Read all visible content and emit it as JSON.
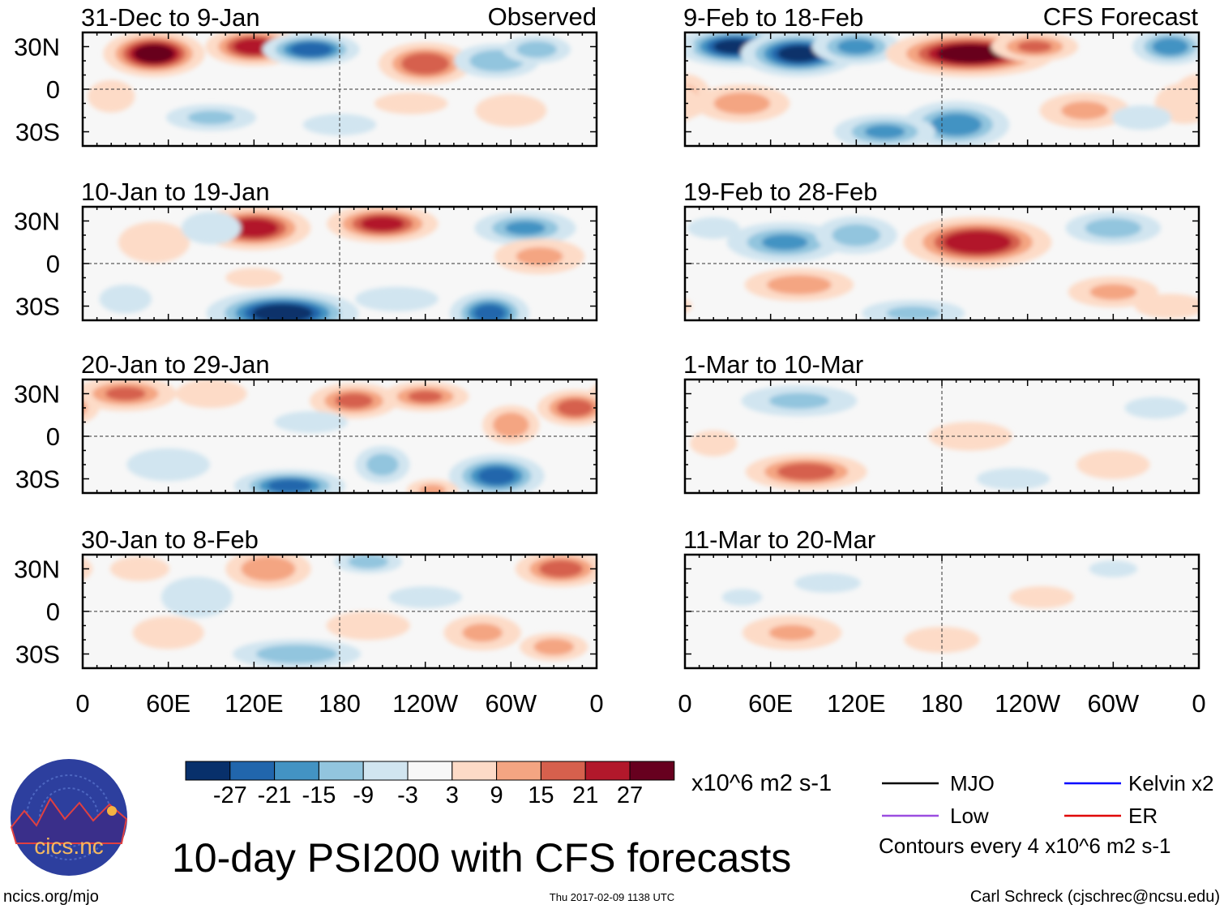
{
  "title": "10-day PSI200 with CFS forecasts",
  "footer": {
    "left": "ncics.org/mjo",
    "center": "Thu 2017-02-09 1138 UTC",
    "right": "Carl Schreck (cjschrec@ncsu.edu)"
  },
  "logo": {
    "text": "cics.nc",
    "ring_text": "Cooperative Institute for Climate and Satellites"
  },
  "column_labels": {
    "observed": "Observed",
    "forecast": "CFS Forecast"
  },
  "y_ticks": [
    "30N",
    "0",
    "30S"
  ],
  "x_ticks": [
    "0",
    "60E",
    "120E",
    "180",
    "120W",
    "60W",
    "0"
  ],
  "colorbar": {
    "units": "x10^6 m2 s-1",
    "labels": [
      "-27",
      "-21",
      "-15",
      "-9",
      "-3",
      "3",
      "9",
      "15",
      "21",
      "27"
    ],
    "colors": [
      "#08306b",
      "#2166ac",
      "#4393c3",
      "#92c5de",
      "#d1e5f0",
      "#f7f7f7",
      "#fddbc7",
      "#f4a582",
      "#d6604d",
      "#b2182b",
      "#67001f"
    ]
  },
  "legend": {
    "items": [
      {
        "label": "MJO",
        "color": "#000000"
      },
      {
        "label": "Kelvin x2",
        "color": "#0000ff"
      },
      {
        "label": "Low",
        "color": "#9b4de0"
      },
      {
        "label": "ER",
        "color": "#e00000"
      }
    ],
    "note": "Contours every 4 x10^6 m2 s-1"
  },
  "chart_data": {
    "type": "heatmap",
    "variable": "200-hPa streamfunction anomaly",
    "xlim": [
      0,
      360
    ],
    "ylim": [
      -40,
      40
    ],
    "panels": [
      {
        "title": "31-Dec to 9-Jan",
        "source": "Observed",
        "features": [
          [
            50,
            25,
            30,
            12,
            8
          ],
          [
            120,
            30,
            24,
            12,
            7
          ],
          [
            160,
            28,
            -24,
            12,
            6
          ],
          [
            240,
            18,
            20,
            12,
            8
          ],
          [
            290,
            20,
            -14,
            12,
            7
          ],
          [
            318,
            28,
            -12,
            10,
            6
          ],
          [
            300,
            -15,
            8,
            12,
            8
          ],
          [
            90,
            -20,
            -10,
            14,
            6
          ],
          [
            230,
            -10,
            6,
            14,
            6
          ],
          [
            180,
            -25,
            -6,
            14,
            6
          ],
          [
            20,
            -5,
            5,
            10,
            10
          ]
        ]
      },
      {
        "title": "10-Jan to 19-Jan",
        "source": "Observed",
        "features": [
          [
            120,
            25,
            24,
            14,
            8
          ],
          [
            210,
            28,
            22,
            14,
            7
          ],
          [
            310,
            25,
            -15,
            14,
            7
          ],
          [
            320,
            5,
            10,
            14,
            8
          ],
          [
            140,
            -35,
            -30,
            18,
            8
          ],
          [
            285,
            -35,
            -22,
            10,
            8
          ],
          [
            50,
            15,
            8,
            12,
            10
          ],
          [
            90,
            25,
            -8,
            10,
            8
          ],
          [
            120,
            -10,
            5,
            12,
            6
          ],
          [
            220,
            -25,
            -8,
            14,
            6
          ],
          [
            30,
            -25,
            -6,
            10,
            8
          ]
        ]
      },
      {
        "title": "20-Jan to 29-Jan",
        "source": "Observed",
        "features": [
          [
            30,
            30,
            15,
            14,
            7
          ],
          [
            90,
            30,
            8,
            12,
            7
          ],
          [
            190,
            25,
            16,
            12,
            7
          ],
          [
            240,
            28,
            15,
            12,
            6
          ],
          [
            300,
            8,
            14,
            8,
            8
          ],
          [
            345,
            20,
            18,
            10,
            7
          ],
          [
            145,
            -35,
            -22,
            14,
            6
          ],
          [
            290,
            -28,
            -22,
            12,
            8
          ],
          [
            210,
            -20,
            -12,
            8,
            8
          ],
          [
            60,
            -20,
            -8,
            14,
            8
          ],
          [
            245,
            -38,
            10,
            8,
            5
          ],
          [
            160,
            10,
            -6,
            14,
            6
          ]
        ]
      },
      {
        "title": "30-Jan to 8-Feb",
        "source": "Observed",
        "features": [
          [
            130,
            30,
            14,
            12,
            8
          ],
          [
            200,
            35,
            -12,
            10,
            5
          ],
          [
            335,
            30,
            18,
            12,
            7
          ],
          [
            80,
            10,
            -8,
            12,
            10
          ],
          [
            60,
            -15,
            8,
            12,
            8
          ],
          [
            150,
            -30,
            -14,
            18,
            6
          ],
          [
            280,
            -15,
            10,
            12,
            8
          ],
          [
            330,
            -25,
            12,
            10,
            6
          ],
          [
            240,
            10,
            -6,
            14,
            6
          ],
          [
            40,
            30,
            8,
            10,
            6
          ],
          [
            200,
            -10,
            6,
            16,
            8
          ]
        ]
      },
      {
        "title": "9-Feb to 18-Feb",
        "source": "CFS Forecast",
        "features": [
          [
            35,
            30,
            -28,
            14,
            7
          ],
          [
            80,
            25,
            -28,
            14,
            8
          ],
          [
            120,
            30,
            -16,
            12,
            7
          ],
          [
            200,
            25,
            30,
            20,
            8
          ],
          [
            245,
            30,
            15,
            12,
            6
          ],
          [
            340,
            30,
            -18,
            10,
            7
          ],
          [
            40,
            -10,
            12,
            14,
            8
          ],
          [
            0,
            -5,
            10,
            8,
            10
          ],
          [
            190,
            -25,
            -18,
            14,
            9
          ],
          [
            140,
            -30,
            -15,
            14,
            7
          ],
          [
            280,
            -15,
            10,
            14,
            8
          ],
          [
            350,
            -10,
            8,
            10,
            10
          ],
          [
            320,
            -20,
            -8,
            10,
            6
          ]
        ]
      },
      {
        "title": "19-Feb to 28-Feb",
        "source": "CFS Forecast",
        "features": [
          [
            205,
            15,
            26,
            18,
            9
          ],
          [
            70,
            15,
            -15,
            16,
            8
          ],
          [
            120,
            20,
            -12,
            12,
            8
          ],
          [
            300,
            25,
            -12,
            14,
            7
          ],
          [
            80,
            -15,
            12,
            16,
            7
          ],
          [
            300,
            -20,
            10,
            14,
            7
          ],
          [
            160,
            -35,
            -10,
            16,
            6
          ],
          [
            340,
            -30,
            8,
            12,
            6
          ],
          [
            20,
            25,
            -6,
            10,
            6
          ]
        ]
      },
      {
        "title": "1-Mar to 10-Mar",
        "source": "CFS Forecast",
        "features": [
          [
            80,
            25,
            -10,
            18,
            7
          ],
          [
            85,
            -25,
            18,
            16,
            7
          ],
          [
            200,
            0,
            6,
            16,
            8
          ],
          [
            330,
            20,
            -6,
            12,
            6
          ],
          [
            300,
            -20,
            6,
            14,
            8
          ],
          [
            230,
            -30,
            -6,
            14,
            6
          ],
          [
            20,
            -5,
            5,
            10,
            8
          ]
        ]
      },
      {
        "title": "11-Mar to 20-Mar",
        "source": "CFS Forecast",
        "features": [
          [
            75,
            -15,
            9,
            16,
            8
          ],
          [
            100,
            20,
            -5,
            14,
            6
          ],
          [
            180,
            -20,
            5,
            16,
            8
          ],
          [
            250,
            10,
            4,
            16,
            8
          ],
          [
            300,
            30,
            -4,
            12,
            6
          ],
          [
            40,
            10,
            -4,
            10,
            6
          ]
        ]
      }
    ]
  }
}
